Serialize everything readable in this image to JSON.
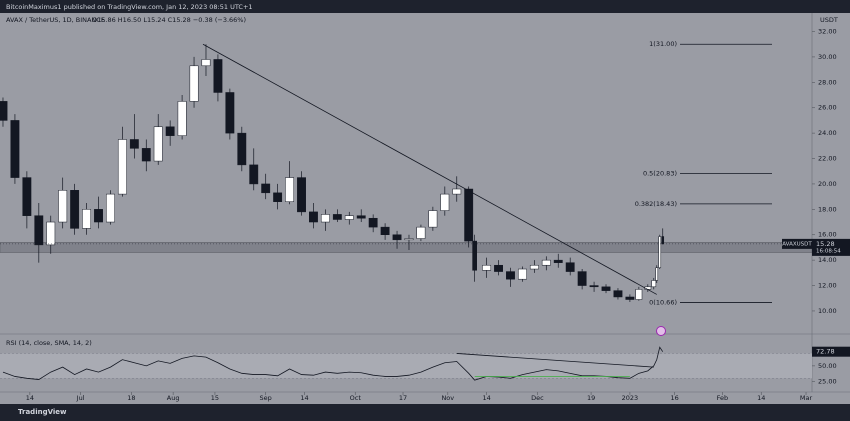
{
  "header": "BitcoinMaximus1 published on TradingView.com, Jan 12, 2023 08:51 UTC+1",
  "footer_logo": "TradingView",
  "chart_data": [
    {
      "type": "candlestick",
      "title": "AVAX / TetherUS, 1D, BINANCE",
      "ohlc_text": "O15.86 H16.50 L15.24 C15.28 −0.38 (−3.66%)",
      "y_label": "USDT",
      "symbol_label": "AVAXUSDT",
      "countdown": "16:08:54",
      "x": [
        "2022-06-05",
        "2022-06-09",
        "2022-06-13",
        "2022-06-17",
        "2022-06-21",
        "2022-06-25",
        "2022-06-29",
        "2022-07-03",
        "2022-07-07",
        "2022-07-11",
        "2022-07-15",
        "2022-07-19",
        "2022-07-23",
        "2022-07-27",
        "2022-07-31",
        "2022-08-04",
        "2022-08-08",
        "2022-08-12",
        "2022-08-16",
        "2022-08-20",
        "2022-08-24",
        "2022-08-28",
        "2022-09-01",
        "2022-09-05",
        "2022-09-09",
        "2022-09-13",
        "2022-09-17",
        "2022-09-21",
        "2022-09-25",
        "2022-09-29",
        "2022-10-03",
        "2022-10-07",
        "2022-10-11",
        "2022-10-15",
        "2022-10-19",
        "2022-10-23",
        "2022-10-27",
        "2022-10-31",
        "2022-11-04",
        "2022-11-08",
        "2022-11-10",
        "2022-11-14",
        "2022-11-18",
        "2022-11-22",
        "2022-11-26",
        "2022-11-30",
        "2022-12-04",
        "2022-12-08",
        "2022-12-12",
        "2022-12-16",
        "2022-12-20",
        "2022-12-24",
        "2022-12-28",
        "2023-01-01",
        "2023-01-04",
        "2023-01-07",
        "2023-01-09",
        "2023-01-10",
        "2023-01-11",
        "2023-01-12"
      ],
      "open": [
        26.5,
        25.0,
        20.5,
        17.5,
        15.2,
        17.0,
        19.5,
        16.5,
        18.0,
        17.0,
        19.2,
        23.5,
        22.8,
        21.8,
        24.5,
        23.8,
        26.5,
        29.3,
        29.8,
        27.2,
        24.0,
        21.5,
        20.0,
        19.3,
        18.6,
        20.5,
        17.8,
        17.0,
        17.6,
        17.2,
        17.5,
        17.3,
        16.6,
        16.0,
        15.6,
        15.7,
        16.6,
        17.9,
        19.2,
        19.6,
        15.5,
        13.2,
        13.6,
        13.1,
        12.5,
        13.3,
        13.6,
        14.0,
        13.8,
        13.1,
        12.0,
        11.9,
        11.6,
        11.1,
        10.9,
        11.7,
        11.9,
        12.4,
        13.4,
        15.86
      ],
      "high": [
        26.8,
        25.5,
        21.0,
        18.5,
        17.5,
        20.5,
        20.0,
        18.5,
        19.0,
        19.5,
        24.5,
        25.5,
        23.5,
        25.5,
        25.0,
        27.0,
        30.0,
        31.0,
        30.2,
        27.5,
        24.5,
        22.8,
        20.8,
        20.0,
        21.8,
        21.0,
        18.5,
        18.0,
        18.0,
        17.8,
        18.0,
        17.6,
        16.9,
        16.3,
        16.0,
        16.8,
        18.2,
        19.8,
        20.6,
        19.8,
        16.0,
        14.2,
        14.0,
        13.4,
        13.5,
        14.0,
        14.3,
        14.5,
        14.2,
        13.3,
        12.3,
        12.1,
        11.8,
        11.3,
        11.9,
        12.1,
        12.6,
        13.6,
        16.0,
        16.5
      ],
      "low": [
        24.5,
        20.0,
        16.5,
        13.8,
        14.5,
        16.5,
        16.0,
        16.0,
        16.5,
        16.8,
        19.0,
        22.0,
        21.0,
        21.5,
        23.0,
        23.5,
        26.0,
        28.5,
        26.5,
        23.5,
        21.0,
        19.5,
        18.8,
        18.0,
        18.4,
        17.5,
        16.5,
        16.3,
        17.0,
        16.8,
        17.0,
        16.2,
        15.6,
        14.9,
        14.8,
        15.5,
        16.3,
        17.5,
        18.6,
        15.0,
        12.3,
        12.6,
        12.8,
        11.9,
        12.3,
        13.0,
        13.2,
        13.4,
        12.8,
        11.7,
        11.5,
        11.4,
        10.9,
        10.7,
        10.8,
        11.5,
        11.7,
        12.2,
        13.3,
        15.24
      ],
      "close": [
        25.0,
        20.5,
        17.5,
        15.2,
        17.0,
        19.5,
        16.5,
        18.0,
        17.0,
        19.2,
        23.5,
        22.8,
        21.8,
        24.5,
        23.8,
        26.5,
        29.3,
        29.8,
        27.2,
        24.0,
        21.5,
        20.0,
        19.3,
        18.6,
        20.5,
        17.8,
        17.0,
        17.6,
        17.2,
        17.5,
        17.3,
        16.6,
        16.0,
        15.6,
        15.7,
        16.6,
        17.9,
        19.2,
        19.6,
        15.5,
        13.2,
        13.6,
        13.1,
        12.5,
        13.3,
        13.6,
        14.0,
        13.8,
        13.1,
        12.0,
        11.9,
        11.6,
        11.1,
        10.9,
        11.7,
        11.9,
        12.4,
        13.4,
        15.86,
        15.28
      ],
      "up_color": "#ffffff",
      "down_color": "#131722",
      "xlim": [
        "2022-06-04",
        "2023-03-03"
      ],
      "xticks": [
        {
          "value": "2022-06-14",
          "label": "14"
        },
        {
          "value": "2022-07-01",
          "label": "Jul"
        },
        {
          "value": "2022-07-18",
          "label": "18"
        },
        {
          "value": "2022-08-01",
          "label": "Aug"
        },
        {
          "value": "2022-08-15",
          "label": "15"
        },
        {
          "value": "2022-09-01",
          "label": "Sep"
        },
        {
          "value": "2022-09-14",
          "label": "14"
        },
        {
          "value": "2022-10-01",
          "label": "Oct"
        },
        {
          "value": "2022-10-17",
          "label": "17"
        },
        {
          "value": "2022-11-01",
          "label": "Nov"
        },
        {
          "value": "2022-11-14",
          "label": "14"
        },
        {
          "value": "2022-12-01",
          "label": "Dec"
        },
        {
          "value": "2022-12-19",
          "label": "19"
        },
        {
          "value": "2023-01-01",
          "label": "2023"
        },
        {
          "value": "2023-01-16",
          "label": "16"
        },
        {
          "value": "2023-02-01",
          "label": "Feb"
        },
        {
          "value": "2023-02-14",
          "label": "14"
        },
        {
          "value": "2023-03-01",
          "label": "Mar"
        }
      ],
      "ylim": [
        8.5,
        33.3
      ],
      "yticks": [
        {
          "value": 10,
          "label": "10.00"
        },
        {
          "value": 12,
          "label": "12.00"
        },
        {
          "value": 14,
          "label": "14.00"
        },
        {
          "value": 16,
          "label": "16.00"
        },
        {
          "value": 18,
          "label": "18.00"
        },
        {
          "value": 20,
          "label": "20.00"
        },
        {
          "value": 22,
          "label": "22.00"
        },
        {
          "value": 24,
          "label": "24.00"
        },
        {
          "value": 26,
          "label": "26.00"
        },
        {
          "value": 28,
          "label": "28.00"
        },
        {
          "value": 30,
          "label": "30.00"
        },
        {
          "value": 32,
          "label": "32.00"
        }
      ],
      "fib_levels": [
        {
          "label": "1(31.00)",
          "value": 31.0
        },
        {
          "label": "0.5(20.83)",
          "value": 20.83
        },
        {
          "label": "0.382(18.43)",
          "value": 18.43
        },
        {
          "label": "0(10.66)",
          "value": 10.66
        }
      ],
      "trendline": {
        "x": [
          "2022-08-11",
          "2023-01-10"
        ],
        "values": [
          31.0,
          11.3
        ]
      },
      "zone": [
        14.6,
        15.4
      ]
    },
    {
      "type": "line",
      "title": "RSI (14, close, SMA, 14, 2)",
      "color": "#131722",
      "x": [
        "2022-06-05",
        "2022-06-09",
        "2022-06-13",
        "2022-06-17",
        "2022-06-21",
        "2022-06-25",
        "2022-06-29",
        "2022-07-03",
        "2022-07-07",
        "2022-07-11",
        "2022-07-15",
        "2022-07-19",
        "2022-07-23",
        "2022-07-27",
        "2022-07-31",
        "2022-08-04",
        "2022-08-08",
        "2022-08-12",
        "2022-08-16",
        "2022-08-20",
        "2022-08-24",
        "2022-08-28",
        "2022-09-01",
        "2022-09-05",
        "2022-09-09",
        "2022-09-13",
        "2022-09-17",
        "2022-09-21",
        "2022-09-25",
        "2022-09-29",
        "2022-10-03",
        "2022-10-07",
        "2022-10-11",
        "2022-10-15",
        "2022-10-19",
        "2022-10-23",
        "2022-10-27",
        "2022-10-31",
        "2022-11-04",
        "2022-11-08",
        "2022-11-10",
        "2022-11-14",
        "2022-11-18",
        "2022-11-22",
        "2022-11-26",
        "2022-11-30",
        "2022-12-04",
        "2022-12-08",
        "2022-12-12",
        "2022-12-16",
        "2022-12-20",
        "2022-12-24",
        "2022-12-28",
        "2023-01-01",
        "2023-01-04",
        "2023-01-07",
        "2023-01-09",
        "2023-01-10",
        "2023-01-11",
        "2023-01-12"
      ],
      "values": [
        40,
        33,
        30,
        28,
        40,
        48,
        36,
        45,
        40,
        48,
        60,
        55,
        50,
        58,
        54,
        62,
        66,
        64,
        55,
        45,
        38,
        36,
        36,
        34,
        45,
        36,
        35,
        40,
        38,
        40,
        39,
        35,
        33,
        33,
        35,
        40,
        48,
        55,
        57,
        38,
        27,
        33,
        32,
        30,
        36,
        40,
        44,
        42,
        38,
        34,
        34,
        33,
        31,
        30,
        38,
        42,
        50,
        60,
        80,
        72.78
      ],
      "ylim": [
        8,
        98
      ],
      "yticks": [
        {
          "value": 25,
          "label": "25.00"
        },
        {
          "value": 50,
          "label": "50.00"
        },
        {
          "value": 75,
          "label": "75.00"
        }
      ],
      "band": [
        30,
        70
      ],
      "trendline": {
        "x": [
          "2022-11-04",
          "2023-01-09"
        ],
        "values": [
          70,
          48
        ]
      },
      "support_line": {
        "x": [
          "2022-11-10",
          "2023-01-01"
        ],
        "values": [
          33,
          33
        ],
        "color": "#4caf50"
      }
    }
  ]
}
